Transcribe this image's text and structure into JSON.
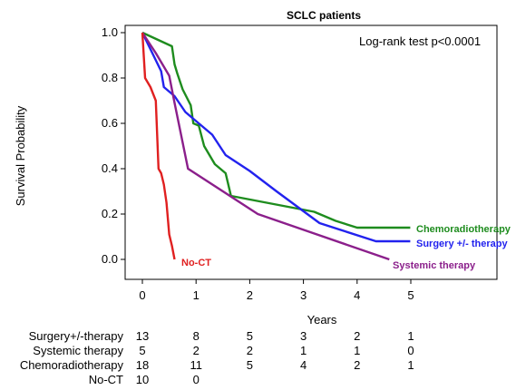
{
  "chart_data": {
    "type": "line",
    "title": "SCLC patients",
    "xlabel": "Years",
    "ylabel": "Survival Probability",
    "xlim": [
      0,
      5
    ],
    "ylim": [
      0,
      1
    ],
    "x_ticks": [
      0,
      1,
      2,
      3,
      4,
      5
    ],
    "y_ticks": [
      0.0,
      0.2,
      0.4,
      0.6,
      0.8,
      1.0
    ],
    "y_tick_labels": [
      "0.0",
      "0.2",
      "0.4",
      "0.6",
      "0.8",
      "1.0"
    ],
    "annotation": "Log-rank test p<0.0001",
    "grid": false,
    "series": [
      {
        "name": "Chemoradiotherapy",
        "color": "#1e8c1e",
        "x": [
          0,
          0.55,
          0.6,
          0.65,
          0.75,
          0.9,
          0.95,
          1.05,
          1.15,
          1.25,
          1.35,
          1.55,
          1.65,
          3.2,
          3.6,
          4.0,
          4.99
        ],
        "y": [
          1.0,
          0.94,
          0.86,
          0.82,
          0.75,
          0.68,
          0.6,
          0.59,
          0.5,
          0.46,
          0.42,
          0.38,
          0.28,
          0.21,
          0.17,
          0.14,
          0.14
        ]
      },
      {
        "name": "Surgery +/- therapy",
        "color": "#2222ee",
        "x": [
          0,
          0.35,
          0.4,
          0.6,
          0.8,
          1.0,
          1.15,
          1.3,
          1.55,
          2.0,
          2.5,
          3.3,
          4.35,
          4.99
        ],
        "y": [
          1.0,
          0.83,
          0.76,
          0.72,
          0.65,
          0.61,
          0.58,
          0.55,
          0.46,
          0.39,
          0.3,
          0.16,
          0.08,
          0.08
        ]
      },
      {
        "name": "Systemic therapy",
        "color": "#8b1f8b",
        "x": [
          0,
          0.25,
          0.5,
          0.6,
          0.85,
          2.15,
          4.6
        ],
        "y": [
          1.0,
          0.91,
          0.81,
          0.69,
          0.4,
          0.2,
          0.0
        ]
      },
      {
        "name": "No-CT",
        "color": "#e02020",
        "x": [
          0,
          0.05,
          0.15,
          0.25,
          0.3,
          0.35,
          0.4,
          0.45,
          0.5,
          0.55,
          0.6
        ],
        "y": [
          1.0,
          0.8,
          0.76,
          0.7,
          0.4,
          0.38,
          0.33,
          0.25,
          0.11,
          0.06,
          0.0
        ]
      }
    ],
    "risk_table": {
      "rows": [
        {
          "label": "Surgery+/-therapy",
          "counts": [
            "13",
            "8",
            "5",
            "3",
            "2",
            "1"
          ]
        },
        {
          "label": "Systemic therapy",
          "counts": [
            "5",
            "2",
            "2",
            "1",
            "1",
            "0"
          ]
        },
        {
          "label": "Chemoradiotherapy",
          "counts": [
            "18",
            "11",
            "5",
            "4",
            "2",
            "1"
          ]
        },
        {
          "label": "No-CT",
          "counts": [
            "10",
            "0"
          ]
        }
      ]
    }
  }
}
